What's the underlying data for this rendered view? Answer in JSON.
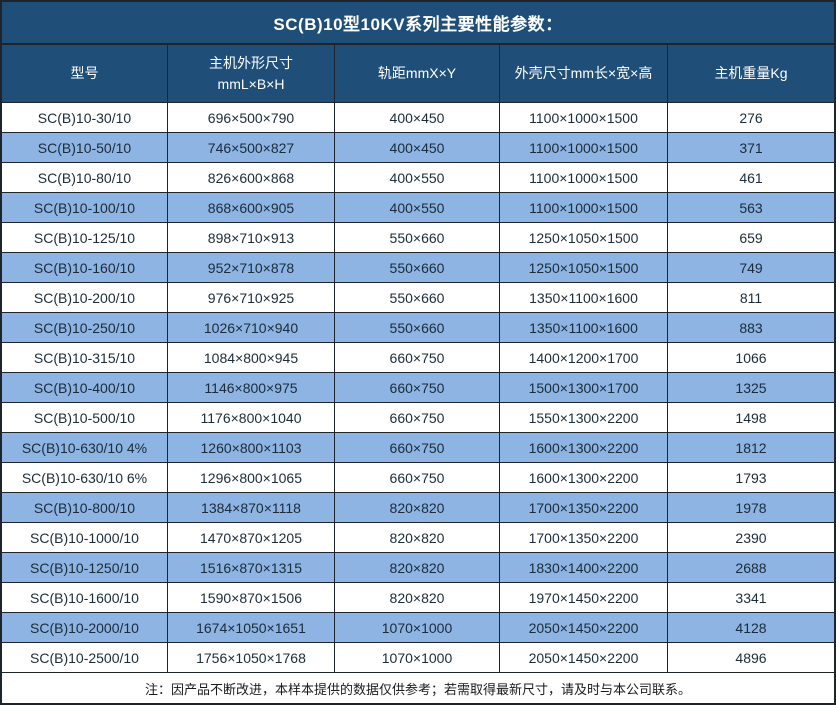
{
  "title": "SC(B)10型10KV系列主要性能参数：",
  "note": "注：因产品不断改进，本样本提供的数据仅供参考；若需取得最新尺寸，请及时与本公司联系。",
  "colors": {
    "navy_header_bg": "#1F4E79",
    "stripe_row_bg": "#8DB4E2",
    "border": "#1e242b",
    "header_text": "#ffffff",
    "body_text": "#1c2b3a",
    "note_text": "#1a1a1a"
  },
  "columns": [
    {
      "label": "型号",
      "sub": ""
    },
    {
      "label": "主机外形尺寸",
      "sub": "mmL×B×H"
    },
    {
      "label": "轨距mmX×Y",
      "sub": ""
    },
    {
      "label": "外壳尺寸mm长×宽×高",
      "sub": ""
    },
    {
      "label": "主机重量Kg",
      "sub": ""
    }
  ],
  "chart_data": {
    "type": "table",
    "title": "SC(B)10型10KV系列主要性能参数：",
    "columns": [
      "型号",
      "主机外形尺寸 mmL×B×H",
      "轨距mmX×Y",
      "外壳尺寸mm长×宽×高",
      "主机重量Kg"
    ],
    "rows": [
      [
        "SC(B)10-30/10",
        "696×500×790",
        "400×450",
        "1100×1000×1500",
        "276"
      ],
      [
        "SC(B)10-50/10",
        "746×500×827",
        "400×450",
        "1100×1000×1500",
        "371"
      ],
      [
        "SC(B)10-80/10",
        "826×600×868",
        "400×550",
        "1100×1000×1500",
        "461"
      ],
      [
        "SC(B)10-100/10",
        "868×600×905",
        "400×550",
        "1100×1000×1500",
        "563"
      ],
      [
        "SC(B)10-125/10",
        "898×710×913",
        "550×660",
        "1250×1050×1500",
        "659"
      ],
      [
        "SC(B)10-160/10",
        "952×710×878",
        "550×660",
        "1250×1050×1500",
        "749"
      ],
      [
        "SC(B)10-200/10",
        "976×710×925",
        "550×660",
        "1350×1100×1600",
        "811"
      ],
      [
        "SC(B)10-250/10",
        "1026×710×940",
        "550×660",
        "1350×1100×1600",
        "883"
      ],
      [
        "SC(B)10-315/10",
        "1084×800×945",
        "660×750",
        "1400×1200×1700",
        "1066"
      ],
      [
        "SC(B)10-400/10",
        "1146×800×975",
        "660×750",
        "1500×1300×1700",
        "1325"
      ],
      [
        "SC(B)10-500/10",
        "1176×800×1040",
        "660×750",
        "1550×1300×2200",
        "1498"
      ],
      [
        "SC(B)10-630/10 4%",
        "1260×800×1103",
        "660×750",
        "1600×1300×2200",
        "1812"
      ],
      [
        "SC(B)10-630/10 6%",
        "1296×800×1065",
        "660×750",
        "1600×1300×2200",
        "1793"
      ],
      [
        "SC(B)10-800/10",
        "1384×870×1118",
        "820×820",
        "1700×1350×2200",
        "1978"
      ],
      [
        "SC(B)10-1000/10",
        "1470×870×1205",
        "820×820",
        "1700×1350×2200",
        "2390"
      ],
      [
        "SC(B)10-1250/10",
        "1516×870×1315",
        "820×820",
        "1830×1400×2200",
        "2688"
      ],
      [
        "SC(B)10-1600/10",
        "1590×870×1506",
        "820×820",
        "1970×1450×2200",
        "3341"
      ],
      [
        "SC(B)10-2000/10",
        "1674×1050×1651",
        "1070×1000",
        "2050×1450×2200",
        "4128"
      ],
      [
        "SC(B)10-2500/10",
        "1756×1050×1768",
        "1070×1000",
        "2050×1450×2200",
        "4896"
      ]
    ]
  }
}
